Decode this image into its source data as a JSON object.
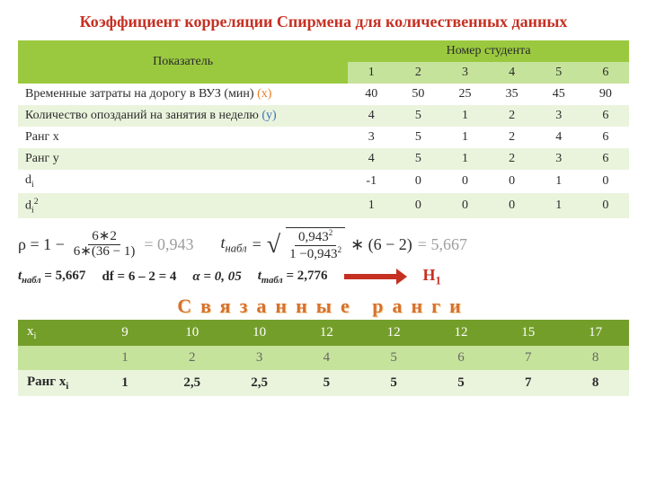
{
  "title": {
    "text": "Коэффициент корреляции Спирмена для количественных данных",
    "color": "#c53023"
  },
  "main": {
    "col1_label": "Показатель",
    "col2_label": "Номер студента",
    "student_nums": [
      "1",
      "2",
      "3",
      "4",
      "5",
      "6"
    ],
    "rows": [
      {
        "label": "Временные затраты на дорогу в ВУЗ (мин) ",
        "suffix": "(x)",
        "suffix_cls": "xlabel",
        "vals": [
          "40",
          "50",
          "25",
          "35",
          "45",
          "90"
        ]
      },
      {
        "label": "Количество опозданий на занятия в неделю ",
        "suffix": "(y)",
        "suffix_cls": "ylabel",
        "vals": [
          "4",
          "5",
          "1",
          "2",
          "3",
          "6"
        ]
      },
      {
        "label": "Ранг x",
        "vals": [
          "3",
          "5",
          "1",
          "2",
          "4",
          "6"
        ]
      },
      {
        "label": "Ранг y",
        "vals": [
          "4",
          "5",
          "1",
          "2",
          "3",
          "6"
        ]
      },
      {
        "label": "d",
        "sub": "i",
        "vals": [
          "-1",
          "0",
          "0",
          "0",
          "1",
          "0"
        ]
      },
      {
        "label": "d",
        "sub": "i",
        "sup": "2",
        "vals": [
          "1",
          "0",
          "0",
          "0",
          "1",
          "0"
        ]
      }
    ]
  },
  "formula": {
    "rho_lhs": "ρ = 1 −",
    "rho_num": "6∗2",
    "rho_den": "6∗(36 − 1)",
    "rho_res": "= 0,943",
    "t_lhs": "t",
    "t_sub": "набл",
    "t_eq": "  =",
    "t_num": "0,943",
    "t_sup": "2",
    "t_den": "1 −0,943",
    "t_den_sup": "2",
    "t_mul": "∗ (6 − 2)",
    "t_res": "= 5,667"
  },
  "stats": {
    "tnabl": "t",
    "tnabl_sub": "набл",
    "tnabl_val": " = 5,667",
    "df": "df = 6 – 2 = 4",
    "alpha": "α = 0, 05",
    "ttabl": "t",
    "ttabl_sub": "табл",
    "ttabl_val": " = 2,776",
    "h1": "H",
    "h1_sub": "1"
  },
  "tied": {
    "title": "Связанные    ранги",
    "rows": [
      {
        "lbl": "x",
        "lbl_sub": "i",
        "cls": "td-dgreen",
        "vals": [
          "9",
          "10",
          "10",
          "12",
          "12",
          "12",
          "15",
          "17"
        ]
      },
      {
        "lbl": "",
        "cls": "td-lgreen",
        "vals": [
          "1",
          "2",
          "3",
          "4",
          "5",
          "6",
          "7",
          "8"
        ]
      },
      {
        "lbl": "Ранг x",
        "lbl_sub": "i",
        "cls": "td-even",
        "vals": [
          "1",
          "2,5",
          "2,5",
          "5",
          "5",
          "5",
          "7",
          "8"
        ],
        "bold": true
      }
    ]
  }
}
